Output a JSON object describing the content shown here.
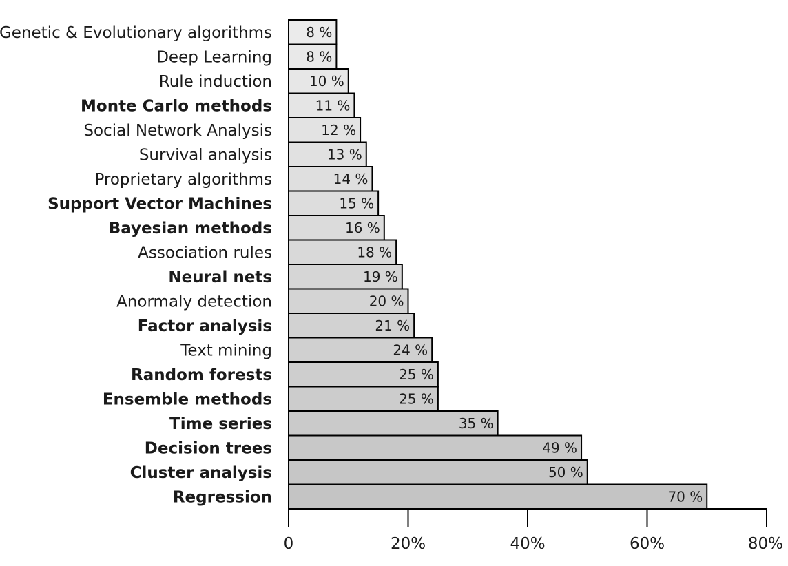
{
  "chart_data": {
    "type": "bar",
    "orientation": "horizontal",
    "title": "",
    "xlabel": "",
    "ylabel": "",
    "xlim": [
      0,
      80
    ],
    "x_ticks": [
      "0",
      "20%",
      "40%",
      "60%",
      "80%"
    ],
    "grid": false,
    "legend": "none",
    "categories": [
      "Genetic & Evolutionary algorithms",
      "Deep Learning",
      "Rule induction",
      "Monte Carlo methods",
      "Social Network Analysis",
      "Survival analysis",
      "Proprietary algorithms",
      "Support Vector Machines",
      "Bayesian methods",
      "Association rules",
      "Neural nets",
      "Anormaly detection",
      "Factor analysis",
      "Text mining",
      "Random forests",
      "Ensemble methods",
      "Time series",
      "Decision trees",
      "Cluster analysis",
      "Regression"
    ],
    "values": [
      8,
      8,
      10,
      11,
      12,
      13,
      14,
      15,
      16,
      18,
      19,
      20,
      21,
      24,
      25,
      25,
      35,
      49,
      50,
      70
    ],
    "value_labels": [
      "8 %",
      "8 %",
      "10 %",
      "11 %",
      "12 %",
      "13 %",
      "14 %",
      "15 %",
      "16 %",
      "18 %",
      "19 %",
      "20 %",
      "21 %",
      "24 %",
      "25 %",
      "25 %",
      "35 %",
      "49 %",
      "50 %",
      "70 %"
    ],
    "bold_categories": [
      "Monte Carlo methods",
      "Support Vector Machines",
      "Bayesian methods",
      "Neural nets",
      "Factor analysis",
      "Random forests",
      "Ensemble methods",
      "Time series",
      "Decision trees",
      "Cluster analysis",
      "Regression"
    ],
    "colors": {
      "bar_light": "#ebebeb",
      "bar_dark": "#c4c4c4",
      "bar_stroke": "#000000",
      "axis": "#000000",
      "text": "#1a1a1a"
    }
  }
}
